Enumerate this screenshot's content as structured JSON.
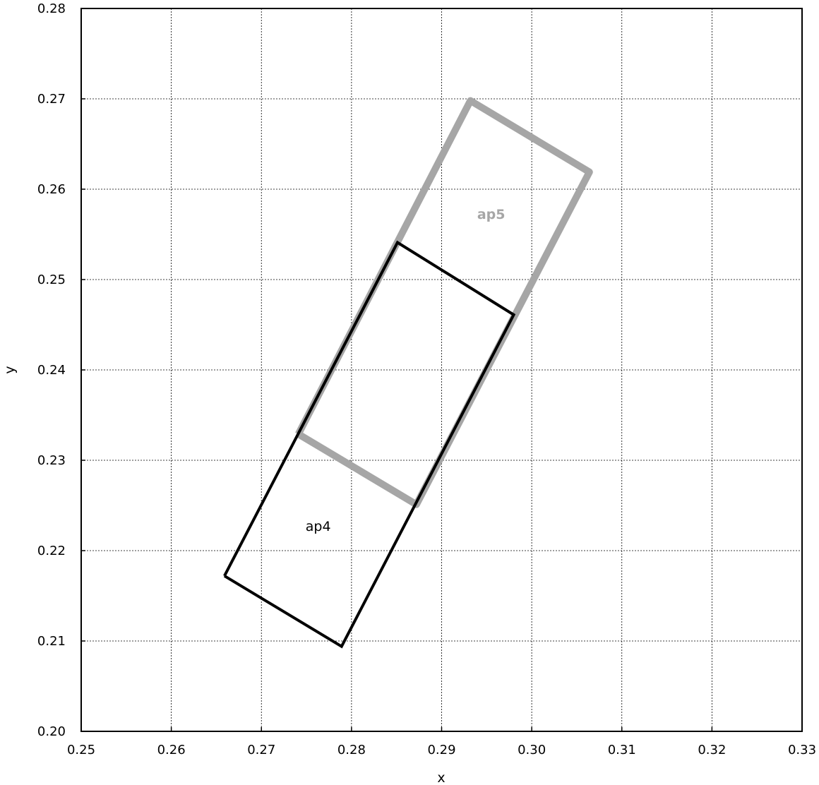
{
  "chart_data": {
    "type": "line",
    "xlabel": "x",
    "ylabel": "y",
    "xlim": [
      0.25,
      0.33
    ],
    "ylim": [
      0.2,
      0.28
    ],
    "grid": true,
    "x_ticks": [
      "0.25",
      "0.26",
      "0.27",
      "0.28",
      "0.29",
      "0.30",
      "0.31",
      "0.32",
      "0.33"
    ],
    "y_ticks": [
      "0.20",
      "0.21",
      "0.22",
      "0.23",
      "0.24",
      "0.25",
      "0.26",
      "0.27",
      "0.28"
    ],
    "series": [
      {
        "name": "ap5",
        "color": "#a6a6a6",
        "line_style": "thick",
        "points": [
          [
            0.2741,
            0.2329
          ],
          [
            0.2932,
            0.2698
          ],
          [
            0.3064,
            0.2619
          ],
          [
            0.2872,
            0.2251
          ],
          [
            0.2741,
            0.2329
          ]
        ],
        "label_at": [
          0.2955,
          0.2567
        ],
        "label_weight": "bold"
      },
      {
        "name": "ap4",
        "color": "#000000",
        "line_style": "thin",
        "points": [
          [
            0.2659,
            0.2172
          ],
          [
            0.2851,
            0.2541
          ],
          [
            0.298,
            0.2461
          ],
          [
            0.2789,
            0.2094
          ],
          [
            0.2659,
            0.2172
          ]
        ],
        "label_at": [
          0.2763,
          0.2222
        ],
        "label_weight": "normal"
      }
    ]
  }
}
